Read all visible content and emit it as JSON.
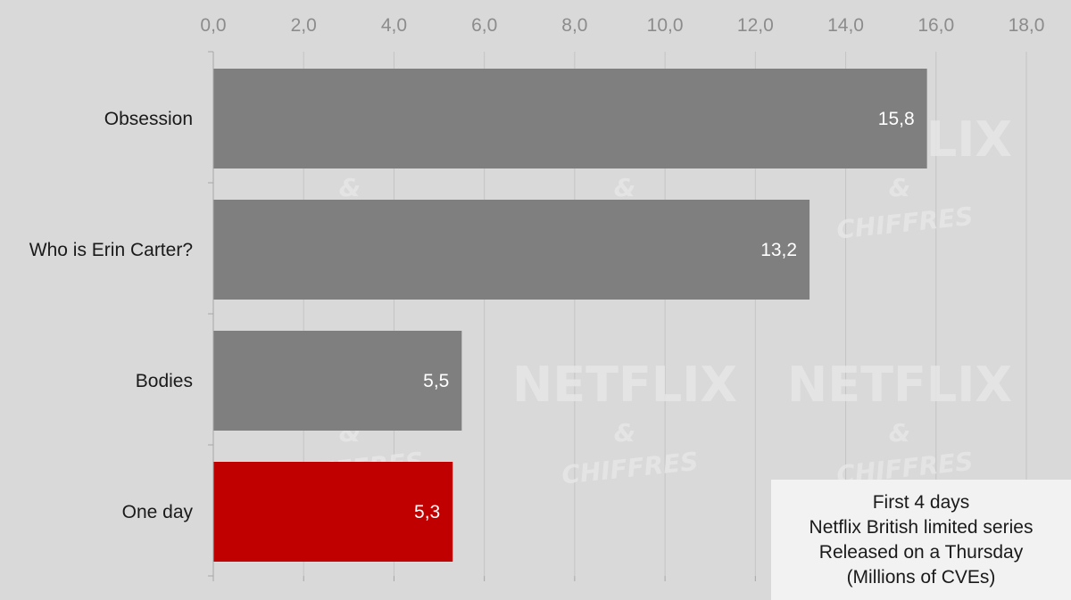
{
  "chart_data": {
    "type": "bar",
    "orientation": "horizontal",
    "categories": [
      "Obsession",
      "Who is Erin Carter?",
      "Bodies",
      "One day"
    ],
    "values": [
      15.8,
      13.2,
      5.5,
      5.3
    ],
    "value_labels": [
      "15,8",
      "13,2",
      "5,5",
      "5,3"
    ],
    "xlim": [
      0,
      18
    ],
    "x_ticks": [
      0,
      2,
      4,
      6,
      8,
      10,
      12,
      14,
      16,
      18
    ],
    "x_tick_labels": [
      "0,0",
      "2,0",
      "4,0",
      "6,0",
      "8,0",
      "10,0",
      "12,0",
      "14,0",
      "16,0",
      "18,0"
    ],
    "x_axis_position": "top",
    "grid": true,
    "colors": {
      "default_bar": "#7f7f7f",
      "highlight_bar": "#c00000",
      "background": "#d9d9d9"
    },
    "highlight_category": "One day"
  },
  "note": {
    "lines": [
      "First 4 days",
      "Netflix British limited series",
      "Released on a Thursday",
      "(Millions of CVEs)"
    ]
  },
  "watermark": {
    "title": "NETFLIX",
    "amp": "&",
    "subtitle": "CHIFFRES"
  }
}
